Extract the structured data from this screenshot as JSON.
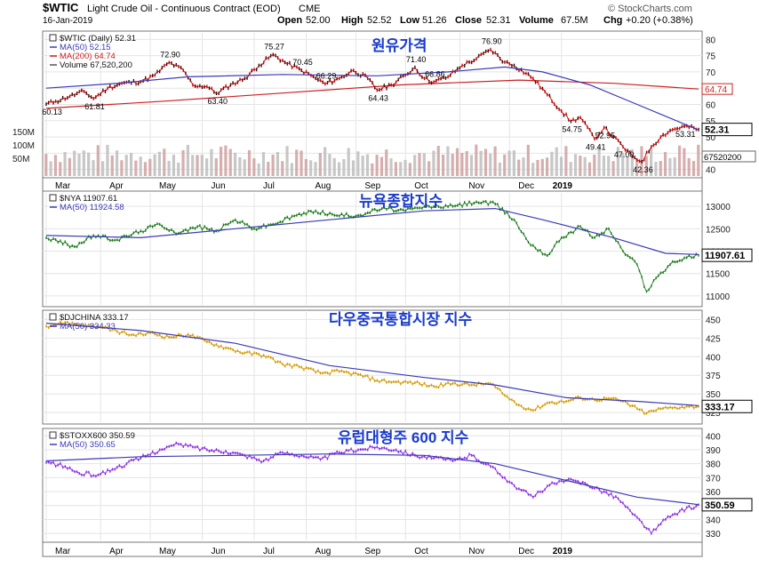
{
  "header": {
    "symbol": "$WTIC",
    "title": "Light Crude Oil - Continuous Contract (EOD)",
    "exchange": "CME",
    "date": "16-Jan-2019",
    "open_label": "Open",
    "open": "52.00",
    "high_label": "High",
    "high": "52.52",
    "low_label": "Low",
    "low": "51.26",
    "close_label": "Close",
    "close": "52.31",
    "volume_label": "Volume",
    "volume": "67.5M",
    "chg_label": "Chg",
    "chg": "+0.20 (+0.38%)",
    "brand": "© StockCharts.com"
  },
  "months": [
    "Mar",
    "Apr",
    "May",
    "Jun",
    "Jul",
    "Aug",
    "Sep",
    "Oct",
    "Nov",
    "Dec",
    "2019"
  ],
  "colors": {
    "wtic_up": "#000000",
    "wtic_down": "#cc0000",
    "nya": "#1a7a1a",
    "djchina": "#d49a00",
    "stoxx": "#8a2be2",
    "ma50": "#3a3ab8",
    "ma200": "#cc2020",
    "volume": "#cfa0a0",
    "annotation": "#1a3bcc"
  },
  "chart_data": [
    {
      "type": "line",
      "panel": "wtic",
      "annotation": "원유가격",
      "legend": [
        "$WTIC (Daily) 52.31",
        "MA(50) 52.15",
        "MA(200) 64.74",
        "Volume 67,520,200"
      ],
      "y_ticks": [
        40,
        45,
        50,
        55,
        60,
        65,
        70,
        75,
        80
      ],
      "volume_ticks": [
        "150M",
        "100M",
        "50M"
      ],
      "ylim": [
        38,
        82
      ],
      "price_points": [
        [
          0,
          60.1
        ],
        [
          4,
          61
        ],
        [
          10,
          62.5
        ],
        [
          16,
          64
        ],
        [
          20,
          61.8
        ],
        [
          26,
          65
        ],
        [
          32,
          66.5
        ],
        [
          40,
          67
        ],
        [
          46,
          69
        ],
        [
          52,
          72.9
        ],
        [
          58,
          70.5
        ],
        [
          62,
          66
        ],
        [
          68,
          65.5
        ],
        [
          72,
          63.4
        ],
        [
          78,
          66
        ],
        [
          84,
          68
        ],
        [
          90,
          72
        ],
        [
          96,
          75.3
        ],
        [
          102,
          72.5
        ],
        [
          108,
          70.5
        ],
        [
          114,
          68
        ],
        [
          118,
          66.3
        ],
        [
          124,
          68
        ],
        [
          130,
          70.5
        ],
        [
          136,
          68
        ],
        [
          140,
          64.4
        ],
        [
          146,
          66
        ],
        [
          152,
          69
        ],
        [
          156,
          71.4
        ],
        [
          160,
          68
        ],
        [
          164,
          66.9
        ],
        [
          170,
          68.5
        ],
        [
          176,
          72
        ],
        [
          182,
          74
        ],
        [
          188,
          76.9
        ],
        [
          194,
          73
        ],
        [
          198,
          72
        ],
        [
          206,
          68
        ],
        [
          212,
          63
        ],
        [
          218,
          58
        ],
        [
          222,
          54.8
        ],
        [
          226,
          56
        ],
        [
          232,
          49.4
        ],
        [
          236,
          52.9
        ],
        [
          240,
          50
        ],
        [
          244,
          47
        ],
        [
          248,
          44
        ],
        [
          252,
          42.4
        ],
        [
          256,
          47
        ],
        [
          260,
          50
        ],
        [
          264,
          52
        ],
        [
          270,
          53.3
        ],
        [
          276,
          52.3
        ]
      ],
      "ma50_points": [
        [
          0,
          65
        ],
        [
          30,
          66.5
        ],
        [
          60,
          68.5
        ],
        [
          100,
          69.2
        ],
        [
          140,
          68.8
        ],
        [
          170,
          70
        ],
        [
          194,
          71.5
        ],
        [
          210,
          70
        ],
        [
          230,
          66
        ],
        [
          250,
          60
        ],
        [
          276,
          52.15
        ]
      ],
      "ma200_points": [
        [
          0,
          58.8
        ],
        [
          50,
          61
        ],
        [
          100,
          63.5
        ],
        [
          150,
          66
        ],
        [
          200,
          67.5
        ],
        [
          240,
          66.5
        ],
        [
          276,
          64.74
        ]
      ],
      "labels": [
        {
          "text": "60.13",
          "x": 2,
          "y": 60.1
        },
        {
          "text": "61.81",
          "x": 20,
          "y": 61.8
        },
        {
          "text": "72.90",
          "x": 52,
          "y": 72.9
        },
        {
          "text": "63.40",
          "x": 72,
          "y": 63.4
        },
        {
          "text": "75.27",
          "x": 96,
          "y": 75.3
        },
        {
          "text": "70.45",
          "x": 108,
          "y": 70.5
        },
        {
          "text": "66.29",
          "x": 118,
          "y": 66.3
        },
        {
          "text": "64.43",
          "x": 140,
          "y": 64.4
        },
        {
          "text": "71.40",
          "x": 156,
          "y": 71.4
        },
        {
          "text": "66.86",
          "x": 164,
          "y": 66.9
        },
        {
          "text": "76.90",
          "x": 188,
          "y": 76.9
        },
        {
          "text": "54.75",
          "x": 222,
          "y": 54.8
        },
        {
          "text": "52.95",
          "x": 236,
          "y": 52.9
        },
        {
          "text": "49.41",
          "x": 232,
          "y": 49.4
        },
        {
          "text": "47.00",
          "x": 244,
          "y": 47.0
        },
        {
          "text": "42.36",
          "x": 252,
          "y": 42.4
        },
        {
          "text": "53.31",
          "x": 270,
          "y": 53.3
        }
      ],
      "right_tags": [
        "64.74",
        "52.31",
        "67520200"
      ]
    },
    {
      "type": "line",
      "panel": "nya",
      "annotation": "뉴욕종합지수",
      "legend": [
        "$NYA 11907.61",
        "MA(50) 11924.58"
      ],
      "y_ticks": [
        11000,
        11500,
        12000,
        12500,
        13000
      ],
      "ylim": [
        10800,
        13300
      ],
      "close_tag": "11907.61",
      "points": [
        [
          0,
          12300
        ],
        [
          12,
          12100
        ],
        [
          20,
          12350
        ],
        [
          30,
          12250
        ],
        [
          40,
          12450
        ],
        [
          48,
          12600
        ],
        [
          56,
          12400
        ],
        [
          64,
          12550
        ],
        [
          72,
          12450
        ],
        [
          80,
          12700
        ],
        [
          88,
          12500
        ],
        [
          96,
          12600
        ],
        [
          106,
          12800
        ],
        [
          114,
          12900
        ],
        [
          122,
          12800
        ],
        [
          132,
          12800
        ],
        [
          142,
          12950
        ],
        [
          152,
          12900
        ],
        [
          162,
          13000
        ],
        [
          172,
          13000
        ],
        [
          182,
          13100
        ],
        [
          190,
          13050
        ],
        [
          198,
          12700
        ],
        [
          204,
          12200
        ],
        [
          212,
          11900
        ],
        [
          218,
          12300
        ],
        [
          226,
          12550
        ],
        [
          232,
          12300
        ],
        [
          238,
          12500
        ],
        [
          244,
          12000
        ],
        [
          250,
          11700
        ],
        [
          254,
          11100
        ],
        [
          258,
          11400
        ],
        [
          264,
          11700
        ],
        [
          270,
          11850
        ],
        [
          276,
          11907.6
        ]
      ],
      "ma50_points": [
        [
          0,
          12350
        ],
        [
          40,
          12300
        ],
        [
          80,
          12500
        ],
        [
          120,
          12700
        ],
        [
          160,
          12900
        ],
        [
          190,
          12950
        ],
        [
          210,
          12700
        ],
        [
          240,
          12300
        ],
        [
          262,
          11950
        ],
        [
          276,
          11924.6
        ]
      ]
    },
    {
      "type": "line",
      "panel": "djchina",
      "annotation": "다우중국통합시장 지수",
      "legend": [
        "$DJCHINA 333.17",
        "MA(50) 334.33"
      ],
      "y_ticks": [
        325,
        350,
        375,
        400,
        425,
        450
      ],
      "ylim": [
        312,
        460
      ],
      "close_tag": "333.17",
      "points": [
        [
          0,
          441
        ],
        [
          8,
          446
        ],
        [
          14,
          443
        ],
        [
          22,
          440
        ],
        [
          30,
          434
        ],
        [
          38,
          428
        ],
        [
          44,
          432
        ],
        [
          52,
          426
        ],
        [
          60,
          430
        ],
        [
          68,
          420
        ],
        [
          76,
          412
        ],
        [
          84,
          405
        ],
        [
          92,
          402
        ],
        [
          100,
          390
        ],
        [
          108,
          386
        ],
        [
          116,
          378
        ],
        [
          124,
          380
        ],
        [
          132,
          376
        ],
        [
          140,
          368
        ],
        [
          148,
          366
        ],
        [
          156,
          365
        ],
        [
          164,
          360
        ],
        [
          172,
          364
        ],
        [
          180,
          362
        ],
        [
          188,
          364
        ],
        [
          194,
          348
        ],
        [
          200,
          335
        ],
        [
          206,
          328
        ],
        [
          212,
          338
        ],
        [
          220,
          340
        ],
        [
          226,
          345
        ],
        [
          232,
          342
        ],
        [
          238,
          344
        ],
        [
          244,
          340
        ],
        [
          250,
          330
        ],
        [
          254,
          324
        ],
        [
          260,
          330
        ],
        [
          266,
          332
        ],
        [
          272,
          333
        ],
        [
          276,
          333.2
        ]
      ],
      "ma50_points": [
        [
          0,
          445
        ],
        [
          40,
          435
        ],
        [
          80,
          418
        ],
        [
          120,
          388
        ],
        [
          160,
          372
        ],
        [
          190,
          362
        ],
        [
          220,
          345
        ],
        [
          250,
          340
        ],
        [
          276,
          334.3
        ]
      ]
    },
    {
      "type": "line",
      "panel": "stoxx",
      "annotation": "유럽대형주 600 지수",
      "legend": [
        "$STOXX600 350.59",
        "MA(50) 350.65"
      ],
      "y_ticks": [
        330,
        340,
        350,
        360,
        370,
        380,
        390,
        400
      ],
      "ylim": [
        325,
        404
      ],
      "close_tag": "350.59",
      "points": [
        [
          0,
          381
        ],
        [
          8,
          378
        ],
        [
          14,
          373
        ],
        [
          22,
          372
        ],
        [
          28,
          376
        ],
        [
          34,
          380
        ],
        [
          40,
          384
        ],
        [
          48,
          390
        ],
        [
          56,
          394
        ],
        [
          62,
          392
        ],
        [
          68,
          390
        ],
        [
          76,
          389
        ],
        [
          84,
          386
        ],
        [
          92,
          382
        ],
        [
          100,
          388
        ],
        [
          108,
          386
        ],
        [
          116,
          383
        ],
        [
          124,
          388
        ],
        [
          132,
          390
        ],
        [
          140,
          392
        ],
        [
          148,
          390
        ],
        [
          156,
          386
        ],
        [
          164,
          384
        ],
        [
          172,
          382
        ],
        [
          180,
          386
        ],
        [
          188,
          378
        ],
        [
          194,
          370
        ],
        [
          200,
          362
        ],
        [
          206,
          356
        ],
        [
          212,
          364
        ],
        [
          220,
          368
        ],
        [
          228,
          366
        ],
        [
          236,
          360
        ],
        [
          242,
          355
        ],
        [
          248,
          344
        ],
        [
          252,
          338
        ],
        [
          256,
          330
        ],
        [
          262,
          340
        ],
        [
          268,
          346
        ],
        [
          276,
          350.6
        ]
      ],
      "ma50_points": [
        [
          0,
          382
        ],
        [
          40,
          385
        ],
        [
          80,
          386
        ],
        [
          120,
          387
        ],
        [
          160,
          386
        ],
        [
          190,
          380
        ],
        [
          220,
          368
        ],
        [
          250,
          356
        ],
        [
          276,
          350.7
        ]
      ]
    }
  ]
}
